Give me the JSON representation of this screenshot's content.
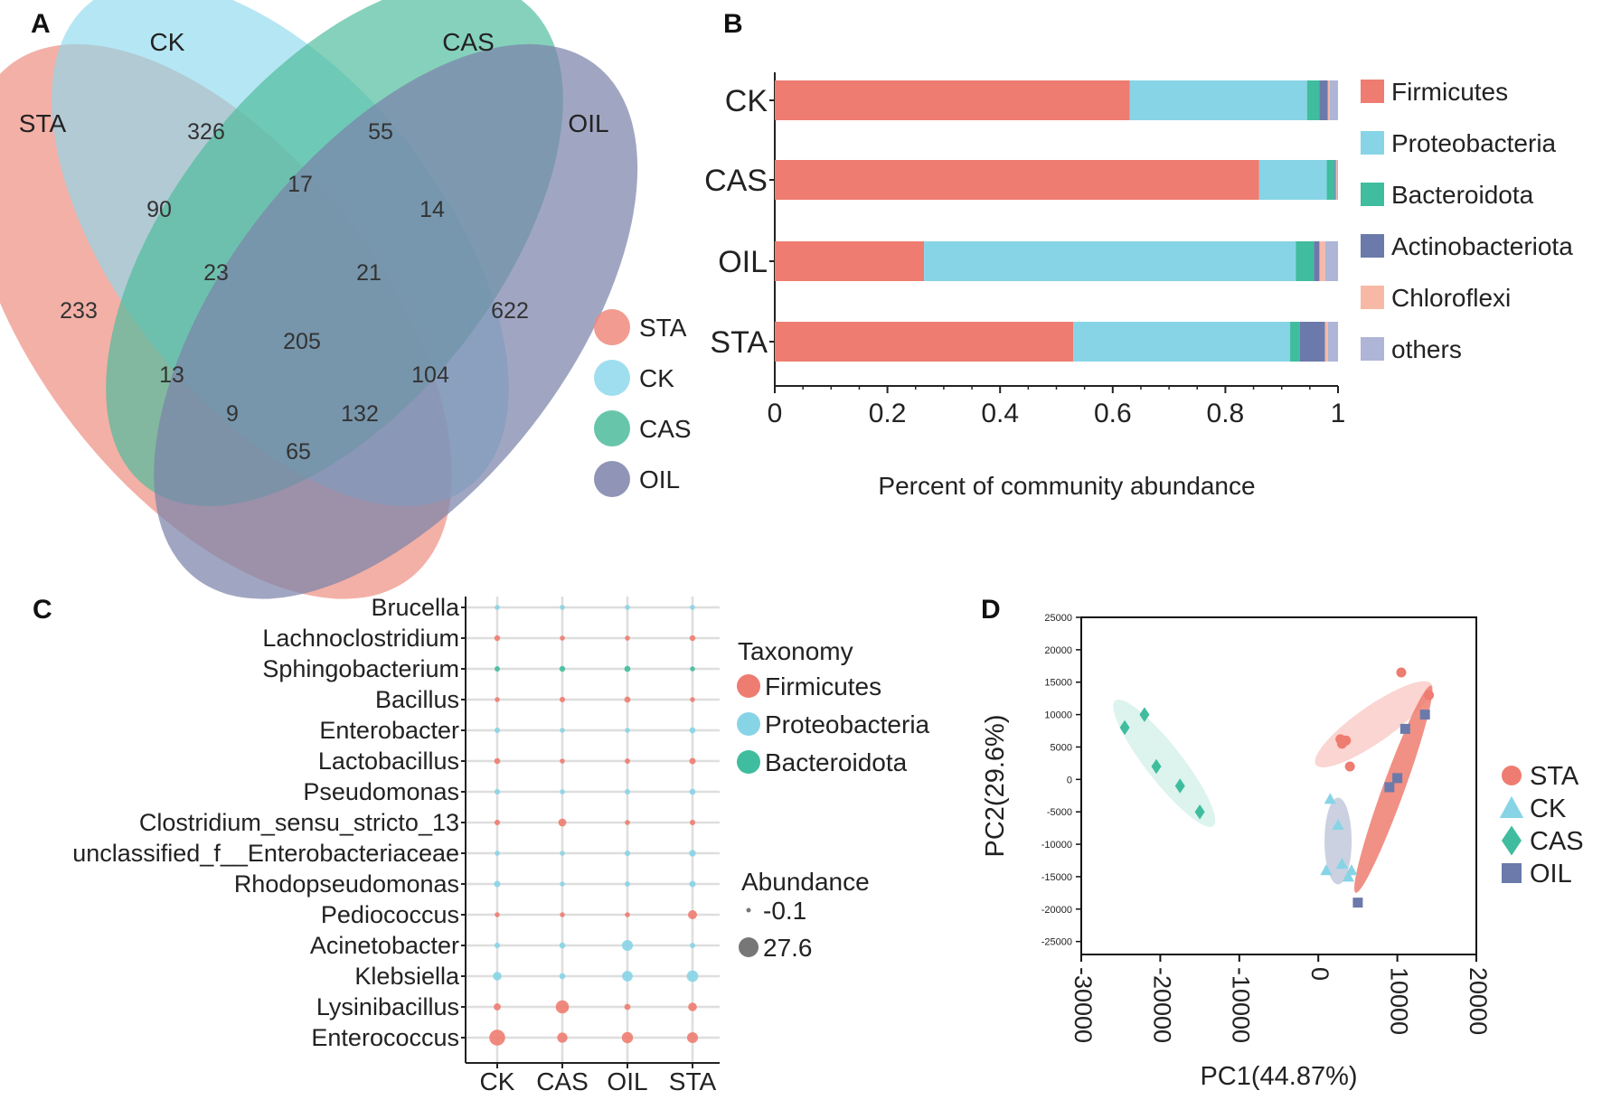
{
  "colors": {
    "sta": "#ee7c70",
    "ck": "#87d4e6",
    "cas": "#3fbd9e",
    "oil": "#6b7aaa",
    "chloroflexi": "#f8b8a6",
    "others": "#afb5d6",
    "venn_sta": "#ee8a7e",
    "venn_ck": "#8ed8ec",
    "venn_cas": "#4cbb9b",
    "venn_oil": "#7c83aa"
  },
  "panels": {
    "a": "A",
    "b": "B",
    "c": "C",
    "d": "D"
  },
  "venn": {
    "sets": [
      "STA",
      "CK",
      "CAS",
      "OIL"
    ],
    "regions": [
      {
        "sets": "STA only",
        "value": "233"
      },
      {
        "sets": "CK only",
        "value": "326"
      },
      {
        "sets": "CAS only",
        "value": "55"
      },
      {
        "sets": "OIL only",
        "value": "622"
      },
      {
        "sets": "STA∩CK",
        "value": "90"
      },
      {
        "sets": "CK∩CAS",
        "value": "17"
      },
      {
        "sets": "CAS∩OIL",
        "value": "14"
      },
      {
        "sets": "STA∩CK∩CAS",
        "value": "23"
      },
      {
        "sets": "CK∩CAS∩OIL",
        "value": "21"
      },
      {
        "sets": "STA∩CK∩CAS∩OIL",
        "value": "205"
      },
      {
        "sets": "STA∩CAS",
        "value": "13"
      },
      {
        "sets": "CK∩OIL",
        "value": "104"
      },
      {
        "sets": "STA∩CAS∩OIL",
        "value": "9"
      },
      {
        "sets": "STA∩CK∩OIL",
        "value": "132"
      },
      {
        "sets": "STA∩OIL",
        "value": "65"
      }
    ],
    "legend": [
      "STA",
      "CK",
      "CAS",
      "OIL"
    ]
  },
  "chart_data": [
    {
      "panel": "A",
      "type": "venn",
      "sets": [
        "STA",
        "CK",
        "CAS",
        "OIL"
      ],
      "region_values": {
        "STA only": 233,
        "CK only": 326,
        "CAS only": 55,
        "OIL only": 622,
        "STA∩CK": 90,
        "CK∩CAS": 17,
        "CAS∩OIL": 14,
        "STA∩CK∩CAS": 23,
        "CK∩CAS∩OIL": 21,
        "STA∩CK∩CAS∩OIL": 205,
        "STA∩CAS": 13,
        "CK∩OIL": 104,
        "STA∩CAS∩OIL": 9,
        "STA∩CK∩OIL": 132,
        "STA∩OIL": 65
      }
    },
    {
      "panel": "B",
      "type": "bar",
      "orientation": "horizontal",
      "stacked": true,
      "categories": [
        "CK",
        "CAS",
        "OIL",
        "STA"
      ],
      "series": [
        {
          "name": "Firmicutes",
          "values": [
            0.63,
            0.86,
            0.265,
            0.53
          ]
        },
        {
          "name": "Proteobacteria",
          "values": [
            0.315,
            0.12,
            0.66,
            0.385
          ]
        },
        {
          "name": "Bacteroidota",
          "values": [
            0.022,
            0.014,
            0.032,
            0.017
          ]
        },
        {
          "name": "Actinobacteriota",
          "values": [
            0.015,
            0.002,
            0.01,
            0.045
          ]
        },
        {
          "name": "Chloroflexi",
          "values": [
            0.003,
            0.002,
            0.01,
            0.005
          ]
        },
        {
          "name": "others",
          "values": [
            0.015,
            0.002,
            0.023,
            0.018
          ]
        }
      ],
      "xlabel": "Percent of community abundance",
      "xlim": [
        0,
        1
      ],
      "xticks": [
        "0",
        "0.2",
        "0.4",
        "0.6",
        "0.8",
        "1"
      ]
    },
    {
      "panel": "C",
      "type": "scatter",
      "subtype": "bubble",
      "x_categories": [
        "CK",
        "CAS",
        "OIL",
        "STA"
      ],
      "y_categories": [
        "Brucella",
        "Lachnoclostridium",
        "Sphingobacterium",
        "Bacillus",
        "Enterobacter",
        "Lactobacillus",
        "Pseudomonas",
        "Clostridium_sensu_stricto_13",
        "unclassified_f__Enterobacteriaceae",
        "Rhodopseudomonas",
        "Pediococcus",
        "Acinetobacter",
        "Klebsiella",
        "Lysinibacillus",
        "Enterococcus"
      ],
      "taxonomy": [
        "Proteobacteria",
        "Firmicutes",
        "Bacteroidota",
        "Firmicutes",
        "Proteobacteria",
        "Firmicutes",
        "Proteobacteria",
        "Firmicutes",
        "Proteobacteria",
        "Proteobacteria",
        "Firmicutes",
        "Proteobacteria",
        "Proteobacteria",
        "Firmicutes",
        "Firmicutes"
      ],
      "abundance": [
        [
          0.1,
          0.1,
          0.1,
          0.1
        ],
        [
          0.4,
          0.1,
          0.1,
          0.4
        ],
        [
          0.2,
          0.4,
          0.6,
          0.1
        ],
        [
          0.1,
          0.3,
          0.6,
          0.1
        ],
        [
          0.3,
          0.1,
          0.1,
          0.5
        ],
        [
          0.5,
          0.1,
          0.2,
          0.7
        ],
        [
          0.3,
          0.1,
          0.2,
          0.5
        ],
        [
          0.3,
          1.8,
          0.1,
          0.3
        ],
        [
          0.1,
          0.1,
          0.3,
          0.9
        ],
        [
          0.7,
          0.1,
          0.2,
          0.7
        ],
        [
          0.1,
          0.1,
          0.1,
          3.0
        ],
        [
          0.3,
          0.5,
          5.5,
          0.2
        ],
        [
          2.6,
          0.5,
          5.0,
          6.5
        ],
        [
          1.2,
          9.5,
          0.6,
          2.6
        ],
        [
          15.5,
          4.5,
          6.0,
          5.5
        ]
      ],
      "legend_taxonomy_title": "Taxonomy",
      "legend_taxonomy": [
        "Firmicutes",
        "Proteobacteria",
        "Bacteroidota"
      ],
      "legend_size_title": "Abundance",
      "legend_size_values": [
        "-0.1",
        "27.6"
      ],
      "size_range": [
        -0.1,
        27.6
      ]
    },
    {
      "panel": "D",
      "type": "scatter",
      "xlabel": "PC1(44.87%)",
      "ylabel": "PC2(29.6%)",
      "xlim": [
        -30000,
        20000
      ],
      "ylim": [
        -27000,
        25000
      ],
      "xticks": [
        -30000,
        -20000,
        -10000,
        0,
        10000,
        20000
      ],
      "yticks": [
        25000,
        20000,
        15000,
        10000,
        5000,
        0,
        -5000,
        -10000,
        -15000,
        -20000,
        -25000
      ],
      "series": [
        {
          "name": "STA",
          "marker": "circle",
          "x": [
            10500,
            14000,
            3000,
            3500,
            4000,
            2800
          ],
          "y": [
            16500,
            13000,
            5500,
            6000,
            2000,
            6200
          ]
        },
        {
          "name": "CK",
          "marker": "triangle",
          "x": [
            1500,
            2500,
            3000,
            3800,
            4200,
            1000
          ],
          "y": [
            -3000,
            -7000,
            -13000,
            -15000,
            -14000,
            -14000
          ]
        },
        {
          "name": "CAS",
          "marker": "diamond",
          "x": [
            -24500,
            -22000,
            -20500,
            -17500,
            -15000
          ],
          "y": [
            8000,
            10000,
            2000,
            -1000,
            -5000
          ]
        },
        {
          "name": "OIL",
          "marker": "square",
          "x": [
            11000,
            13500,
            9000,
            10000,
            5000
          ],
          "y": [
            7800,
            10000,
            -1200,
            200,
            -19000
          ]
        }
      ]
    }
  ]
}
